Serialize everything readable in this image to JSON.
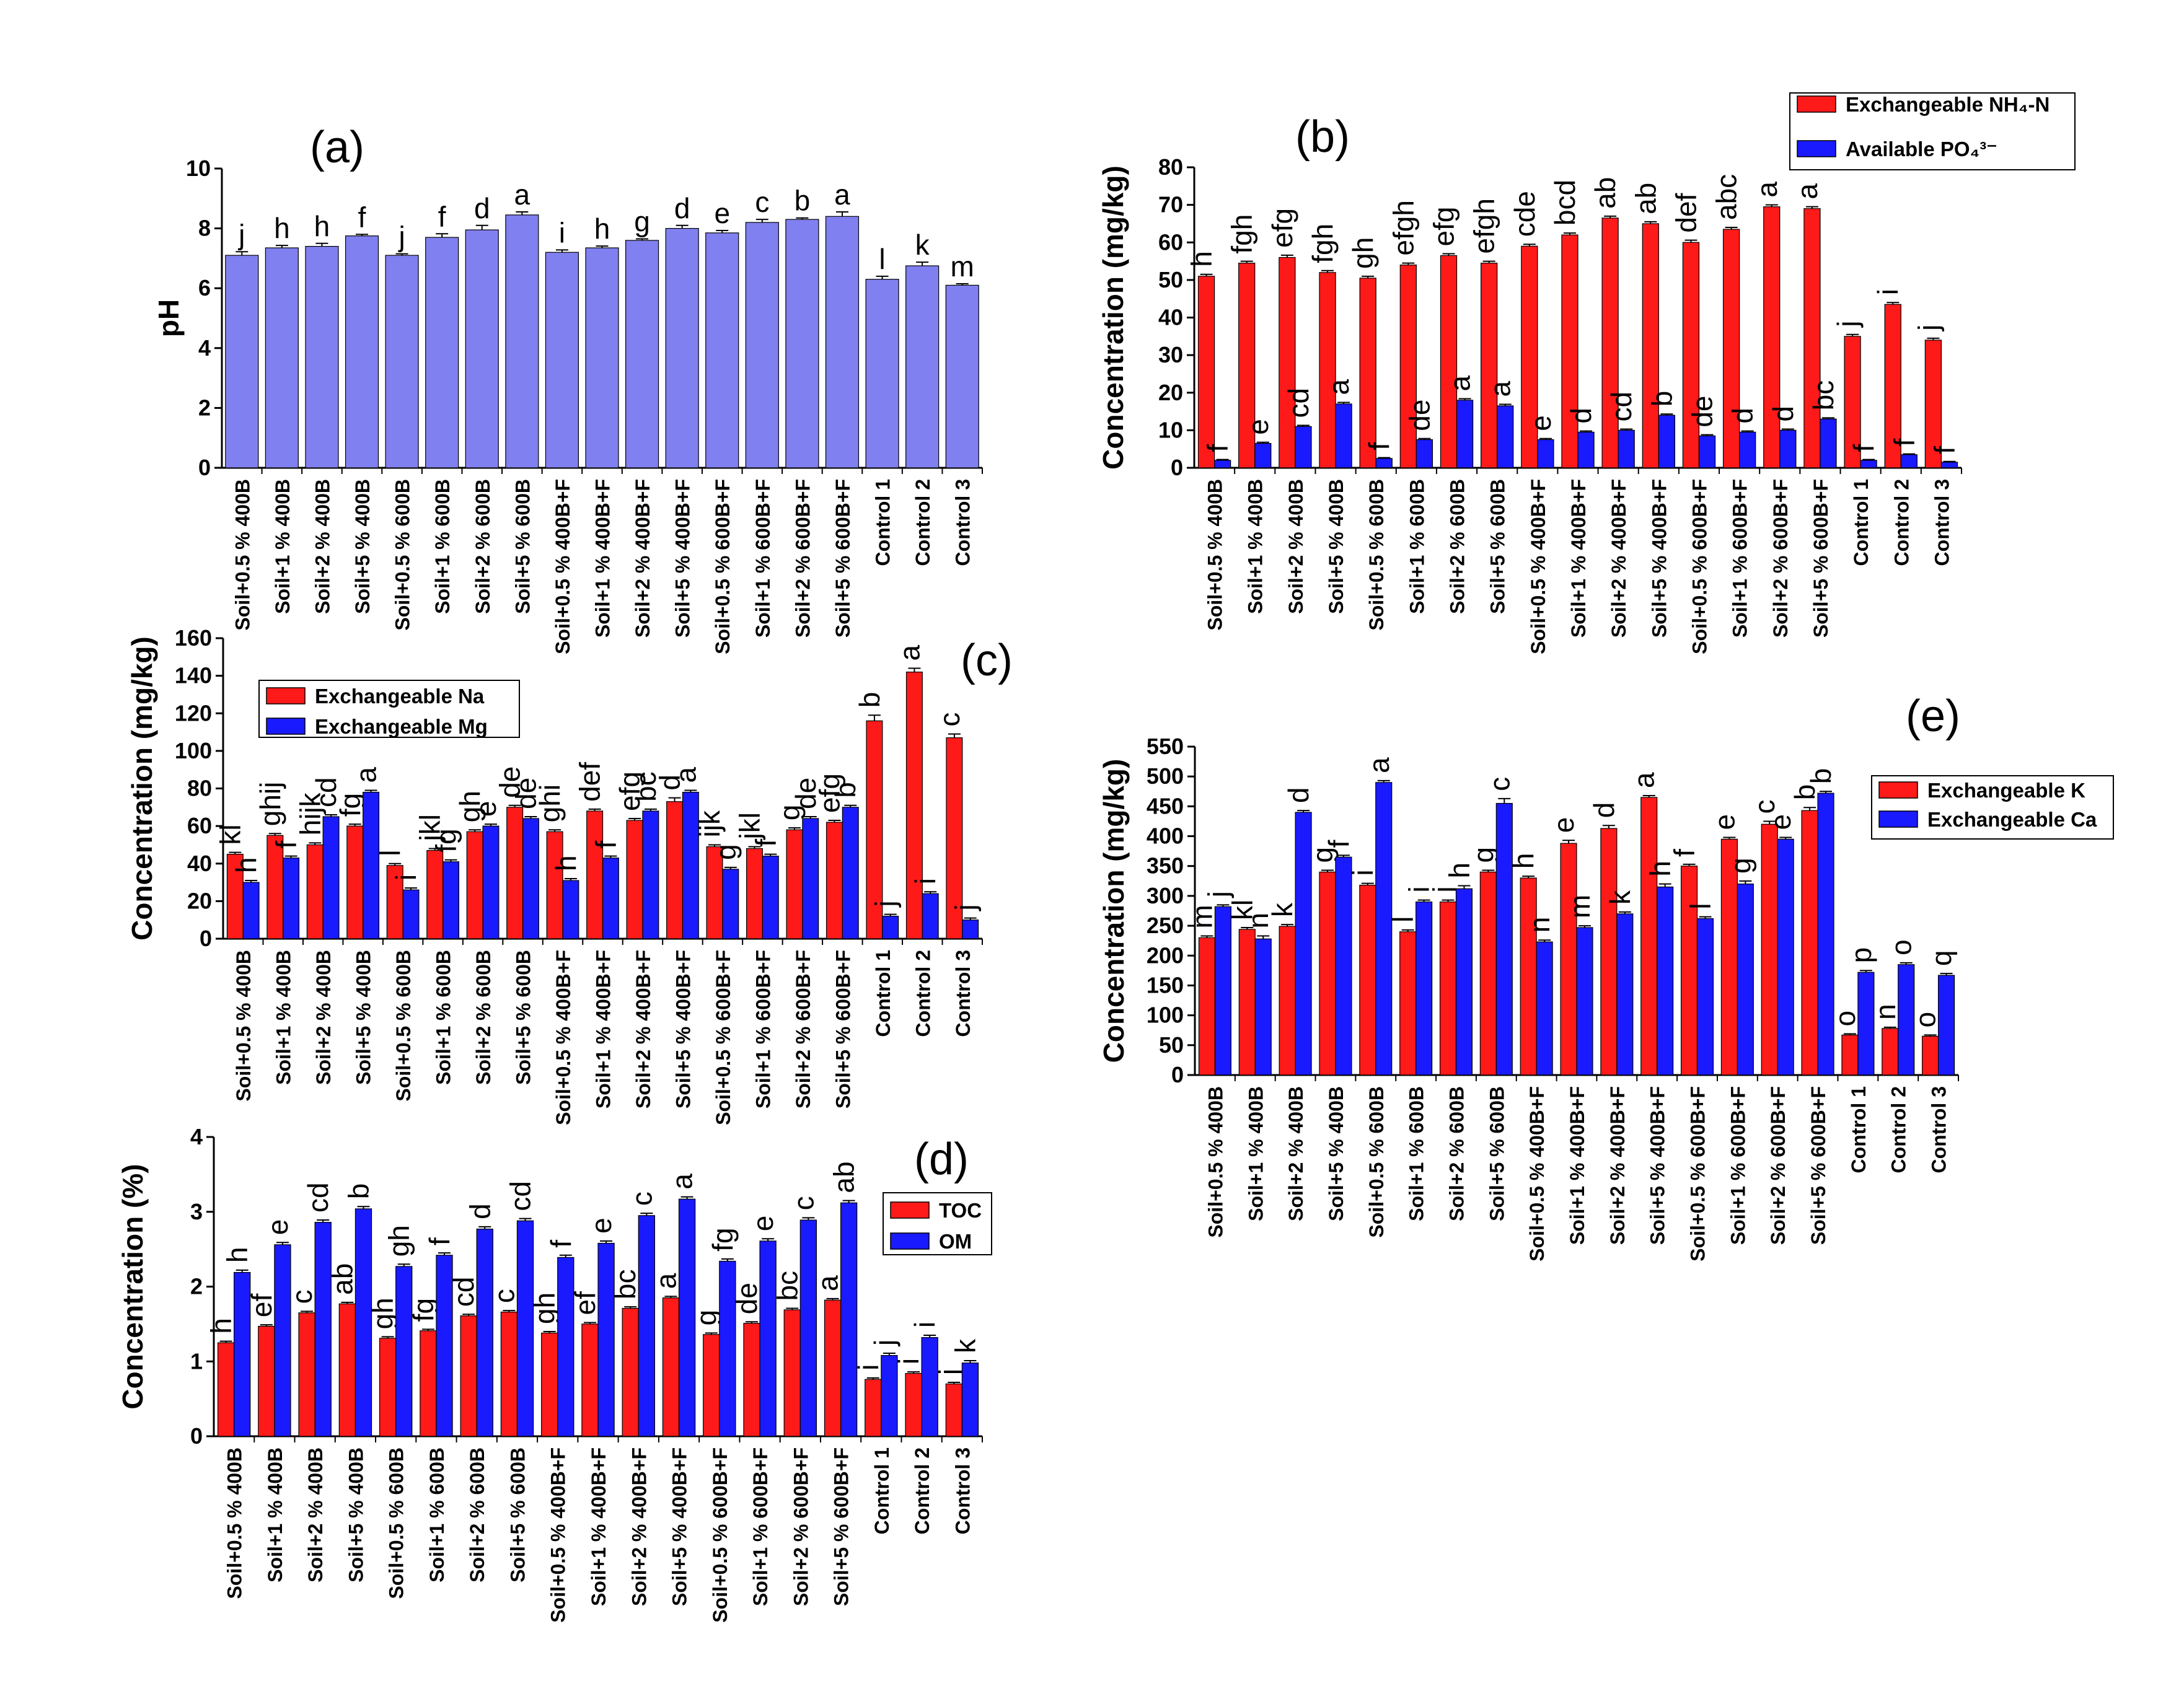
{
  "chart_data": [
    {
      "panel": "(a)",
      "type": "bar",
      "ylabel": "pH",
      "ylim": [
        0,
        10
      ],
      "yticks": [
        0,
        2,
        4,
        6,
        8,
        10
      ],
      "categories": [
        "Soil+0.5 % 400B",
        "Soil+1 % 400B",
        "Soil+2 % 400B",
        "Soil+5 % 400B",
        "Soil+0.5 % 600B",
        "Soil+1 % 600B",
        "Soil+2 % 600B",
        "Soil+5 % 600B",
        "Soil+0.5 % 400B+F",
        "Soil+1 % 400B+F",
        "Soil+2 % 400B+F",
        "Soil+5 % 400B+F",
        "Soil+0.5 % 600B+F",
        "Soil+1 % 600B+F",
        "Soil+2 % 600B+F",
        "Soil+5 % 600B+F",
        "Control 1",
        "Control 2",
        "Control 3"
      ],
      "series": [
        {
          "name": "pH",
          "color": "#8080f0",
          "values": [
            7.1,
            7.35,
            7.4,
            7.75,
            7.1,
            7.7,
            7.95,
            8.45,
            7.2,
            7.35,
            7.6,
            8.0,
            7.85,
            8.2,
            8.3,
            8.4,
            6.3,
            6.75,
            6.1
          ],
          "errors": [
            0.12,
            0.08,
            0.1,
            0.05,
            0.05,
            0.12,
            0.15,
            0.1,
            0.08,
            0.06,
            0.05,
            0.1,
            0.08,
            0.1,
            0.05,
            0.15,
            0.1,
            0.12,
            0.05
          ],
          "letters": [
            "j",
            "h",
            "h",
            "f",
            "j",
            "f",
            "d",
            "a",
            "i",
            "h",
            "g",
            "d",
            "e",
            "c",
            "b",
            "a",
            "l",
            "k",
            "m"
          ]
        }
      ]
    },
    {
      "panel": "(b)",
      "type": "bar",
      "ylabel": "Concentration (mg/kg)",
      "ylim": [
        0,
        80
      ],
      "yticks": [
        0,
        10,
        20,
        30,
        40,
        50,
        60,
        70,
        80
      ],
      "legend": [
        "Exchangeable NH₄-N",
        "Available PO₄³⁻"
      ],
      "legend_position": "top-right",
      "categories": [
        "Soil+0.5 % 400B",
        "Soil+1 % 400B",
        "Soil+2 % 400B",
        "Soil+5 % 400B",
        "Soil+0.5 % 600B",
        "Soil+1 % 600B",
        "Soil+2 % 600B",
        "Soil+5 % 600B",
        "Soil+0.5 % 400B+F",
        "Soil+1 % 400B+F",
        "Soil+2 % 400B+F",
        "Soil+5 % 400B+F",
        "Soil+0.5 % 600B+F",
        "Soil+1 % 600B+F",
        "Soil+2 % 600B+F",
        "Soil+5 % 600B+F",
        "Control 1",
        "Control 2",
        "Control 3"
      ],
      "series": [
        {
          "name": "Exchangeable NH4-N",
          "color": "#ff1a1a",
          "values": [
            51,
            54.5,
            56,
            52,
            50.5,
            54,
            56.5,
            54.5,
            59,
            62,
            66.5,
            65,
            60,
            63.5,
            69.5,
            69,
            35,
            43.5,
            34
          ],
          "errors": [
            0.5,
            0.5,
            0.6,
            0.5,
            0.5,
            0.5,
            0.5,
            0.5,
            0.5,
            0.5,
            0.5,
            0.5,
            0.6,
            0.5,
            0.5,
            0.5,
            0.5,
            0.5,
            0.5
          ],
          "letters": [
            "h",
            "fgh",
            "efg",
            "fgh",
            "gh",
            "efgh",
            "efg",
            "efgh",
            "cde",
            "bcd",
            "ab",
            "ab",
            "def",
            "abc",
            "a",
            "a",
            "j",
            "i",
            "j"
          ]
        },
        {
          "name": "Available PO4",
          "color": "#1a1aff",
          "values": [
            2,
            6.5,
            11,
            17,
            2.5,
            7.5,
            18,
            16.5,
            7.5,
            9.5,
            10,
            14,
            8.5,
            9.5,
            10,
            13,
            2,
            3.5,
            1.5
          ],
          "errors": [
            0.2,
            0.3,
            0.3,
            0.4,
            0.2,
            0.3,
            0.4,
            0.4,
            0.3,
            0.3,
            0.3,
            0.3,
            0.3,
            0.3,
            0.3,
            0.3,
            0.2,
            0.2,
            0.2
          ],
          "letters": [
            "f",
            "e",
            "cd",
            "a",
            "f",
            "de",
            "a",
            "a",
            "e",
            "d",
            "cd",
            "b",
            "de",
            "d",
            "d",
            "bc",
            "f",
            "f",
            "f"
          ]
        }
      ]
    },
    {
      "panel": "(c)",
      "type": "bar",
      "ylabel": "Concentration (mg/kg)",
      "ylim": [
        0,
        160
      ],
      "yticks": [
        0,
        20,
        40,
        60,
        80,
        100,
        120,
        140,
        160
      ],
      "legend": [
        "Exchangeable Na",
        "Exchangeable Mg"
      ],
      "legend_position": "top-left",
      "categories": [
        "Soil+0.5 % 400B",
        "Soil+1 % 400B",
        "Soil+2 % 400B",
        "Soil+5 % 400B",
        "Soil+0.5 % 600B",
        "Soil+1 % 600B",
        "Soil+2 % 600B",
        "Soil+5 % 600B",
        "Soil+0.5 % 400B+F",
        "Soil+1 % 400B+F",
        "Soil+2 % 400B+F",
        "Soil+5 % 400B+F",
        "Soil+0.5 % 600B+F",
        "Soil+1 % 600B+F",
        "Soil+2 % 600B+F",
        "Soil+5 % 600B+F",
        "Control 1",
        "Control 2",
        "Control 3"
      ],
      "series": [
        {
          "name": "Exchangeable Na",
          "color": "#ff1a1a",
          "values": [
            45,
            55,
            50,
            60,
            39,
            47,
            57,
            70,
            57,
            68,
            63,
            73,
            49,
            48,
            58,
            62,
            116,
            142,
            107
          ],
          "errors": [
            1,
            1,
            1,
            1,
            1,
            1,
            1,
            1,
            1,
            1,
            1,
            2,
            1,
            1,
            1,
            1,
            3,
            2,
            2
          ],
          "letters": [
            "kl",
            "ghij",
            "hijk",
            "fg",
            "l",
            "jkl",
            "gh",
            "de",
            "ghi",
            "def",
            "efg",
            "d",
            "ijk",
            "jkl",
            "g",
            "efg",
            "b",
            "a",
            "c"
          ]
        },
        {
          "name": "Exchangeable Mg",
          "color": "#1a1aff",
          "values": [
            30,
            43,
            65,
            78,
            26,
            41,
            60,
            64,
            31,
            43,
            68,
            78,
            37,
            44,
            64,
            70,
            12,
            24,
            10
          ],
          "errors": [
            1,
            1,
            1,
            1,
            1,
            1,
            1,
            1,
            1,
            1,
            1,
            1,
            1,
            1,
            1,
            1,
            1,
            1,
            1
          ],
          "letters": [
            "h",
            "f",
            "cd",
            "a",
            "i",
            "fg",
            "e",
            "de",
            "h",
            "f",
            "bc",
            "a",
            "g",
            "f",
            "de",
            "b",
            "j",
            "i",
            "j"
          ]
        }
      ]
    },
    {
      "panel": "(d)",
      "type": "bar",
      "ylabel": "Concentration (%)",
      "ylim": [
        0,
        4
      ],
      "yticks": [
        0,
        1,
        2,
        3,
        4
      ],
      "legend": [
        "TOC",
        "OM"
      ],
      "legend_position": "top-right",
      "categories": [
        "Soil+0.5 % 400B",
        "Soil+1 % 400B",
        "Soil+2 % 400B",
        "Soil+5 % 400B",
        "Soil+0.5 % 600B",
        "Soil+1 % 600B",
        "Soil+2 % 600B",
        "Soil+5 % 600B",
        "Soil+0.5 % 400B+F",
        "Soil+1 % 400B+F",
        "Soil+2 % 400B+F",
        "Soil+5 % 400B+F",
        "Soil+0.5 % 600B+F",
        "Soil+1 % 600B+F",
        "Soil+2 % 600B+F",
        "Soil+5 % 600B+F",
        "Control 1",
        "Control 2",
        "Control 3"
      ],
      "series": [
        {
          "name": "TOC",
          "color": "#ff1a1a",
          "values": [
            1.25,
            1.47,
            1.65,
            1.77,
            1.31,
            1.41,
            1.61,
            1.66,
            1.38,
            1.5,
            1.71,
            1.85,
            1.36,
            1.51,
            1.69,
            1.82,
            0.76,
            0.84,
            0.7
          ],
          "errors": [
            0.02,
            0.02,
            0.02,
            0.02,
            0.02,
            0.02,
            0.02,
            0.02,
            0.02,
            0.02,
            0.02,
            0.02,
            0.02,
            0.02,
            0.02,
            0.02,
            0.02,
            0.02,
            0.02
          ],
          "letters": [
            "h",
            "ef",
            "c",
            "ab",
            "gh",
            "fg",
            "cd",
            "c",
            "gh",
            "ef",
            "bc",
            "a",
            "g",
            "de",
            "bc",
            "a",
            "i",
            "i",
            "j"
          ]
        },
        {
          "name": "OM",
          "color": "#1a1aff",
          "values": [
            2.19,
            2.56,
            2.86,
            3.04,
            2.27,
            2.42,
            2.77,
            2.88,
            2.39,
            2.58,
            2.95,
            3.17,
            2.34,
            2.61,
            2.89,
            3.12,
            1.08,
            1.32,
            0.98
          ],
          "errors": [
            0.03,
            0.03,
            0.03,
            0.03,
            0.03,
            0.03,
            0.03,
            0.03,
            0.03,
            0.03,
            0.03,
            0.03,
            0.03,
            0.03,
            0.03,
            0.03,
            0.03,
            0.03,
            0.03
          ],
          "letters": [
            "h",
            "e",
            "cd",
            "b",
            "gh",
            "f",
            "d",
            "cd",
            "f",
            "e",
            "c",
            "a",
            "fg",
            "e",
            "c",
            "ab",
            "j",
            "i",
            "k"
          ]
        }
      ]
    },
    {
      "panel": "(e)",
      "type": "bar",
      "ylabel": "Concentration (mg/kg)",
      "ylim": [
        0,
        550
      ],
      "yticks": [
        0,
        50,
        100,
        150,
        200,
        250,
        300,
        350,
        400,
        450,
        500,
        550
      ],
      "legend": [
        "Exchangeable K",
        "Exchangeable Ca"
      ],
      "legend_position": "top-right",
      "categories": [
        "Soil+0.5 % 400B",
        "Soil+1 % 400B",
        "Soil+2 % 400B",
        "Soil+5 % 400B",
        "Soil+0.5 % 600B",
        "Soil+1 % 600B",
        "Soil+2 % 600B",
        "Soil+5 % 600B",
        "Soil+0.5 % 400B+F",
        "Soil+1 % 400B+F",
        "Soil+2 % 400B+F",
        "Soil+5 % 400B+F",
        "Soil+0.5 % 600B+F",
        "Soil+1 % 600B+F",
        "Soil+2 % 600B+F",
        "Soil+5 % 600B+F",
        "Control 1",
        "Control 2",
        "Control 3"
      ],
      "series": [
        {
          "name": "Exchangeable K",
          "color": "#ff1a1a",
          "values": [
            230,
            244,
            249,
            340,
            318,
            240,
            290,
            340,
            330,
            388,
            413,
            465,
            350,
            395,
            420,
            443,
            67,
            78,
            65
          ],
          "errors": [
            3,
            3,
            3,
            3,
            3,
            3,
            3,
            3,
            3,
            5,
            5,
            3,
            3,
            3,
            5,
            5,
            2,
            2,
            2
          ],
          "letters": [
            "m",
            "kl",
            "k",
            "g",
            "i",
            "l",
            "j",
            "g",
            "h",
            "e",
            "d",
            "a",
            "f",
            "e",
            "c",
            "b",
            "o",
            "n",
            "o"
          ]
        },
        {
          "name": "Exchangeable Ca",
          "color": "#1a1aff",
          "values": [
            282,
            228,
            440,
            365,
            490,
            290,
            312,
            455,
            223,
            247,
            270,
            315,
            262,
            320,
            395,
            472,
            172,
            185,
            167
          ],
          "errors": [
            3,
            5,
            3,
            3,
            3,
            3,
            5,
            8,
            3,
            3,
            3,
            5,
            3,
            5,
            3,
            3,
            3,
            3,
            3
          ],
          "letters": [
            "j",
            "n",
            "d",
            "f",
            "a",
            "i",
            "h",
            "c",
            "n",
            "m",
            "k",
            "h",
            "l",
            "g",
            "e",
            "b",
            "p",
            "o",
            "q"
          ]
        }
      ]
    }
  ]
}
